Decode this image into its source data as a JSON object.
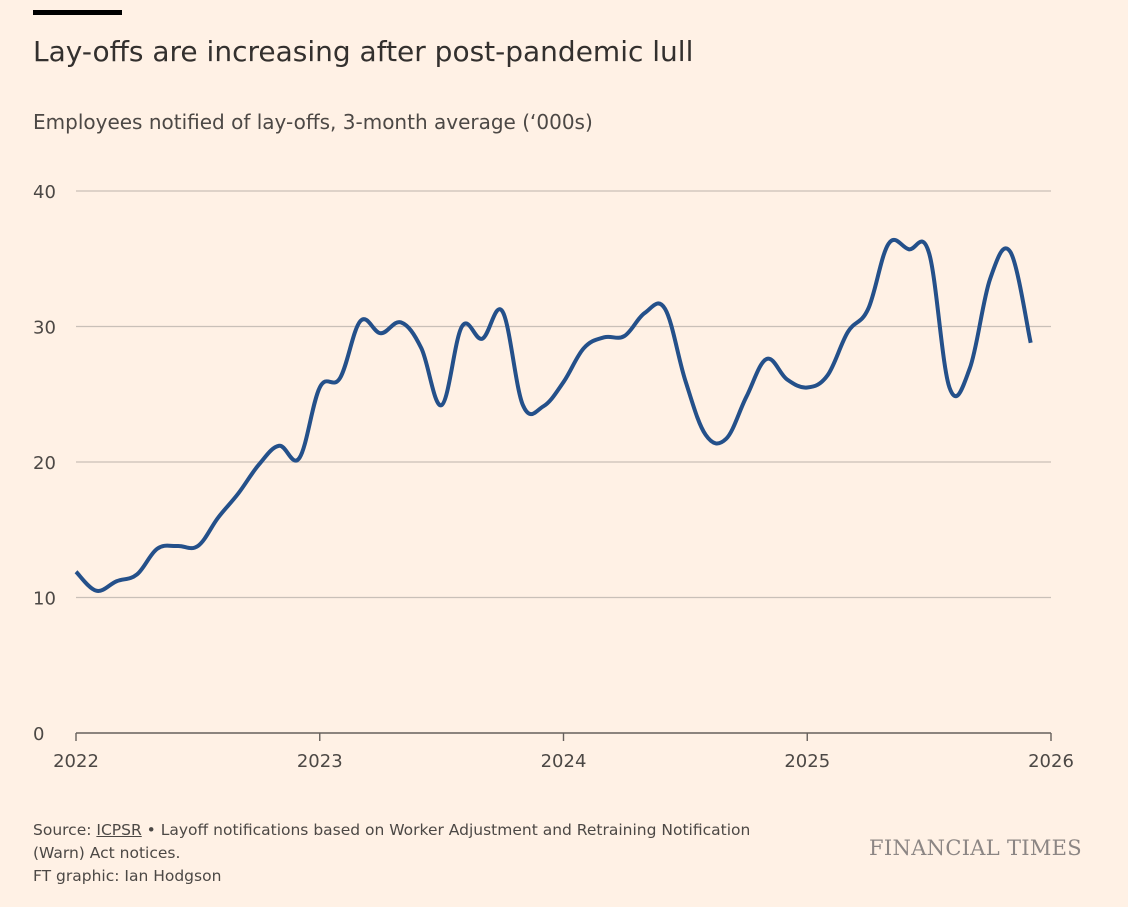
{
  "header": {
    "title": "Lay-offs are increasing after post-pandemic lull",
    "subtitle": "Employees notified of lay-offs, 3-month average (‘000s)"
  },
  "footer": {
    "source_prefix": "Source: ",
    "source_link": "ICPSR",
    "source_bullet": " • ",
    "source_note": "Layoff notifications based on Worker Adjustment and Retraining Notification (Warn) Act notices.",
    "credit": "FT graphic: Ian Hodgson",
    "brand": "FINANCIAL TIMES"
  },
  "colors": {
    "background": "#fff1e5",
    "line": "#24508a",
    "grid": "#c9c0b8",
    "axis": "#66605c"
  },
  "chart_data": {
    "type": "line",
    "title": "Lay-offs are increasing after post-pandemic lull",
    "subtitle": "Employees notified of lay-offs, 3-month average (‘000s)",
    "xlabel": "",
    "ylabel": "",
    "xlim": [
      "2022-01",
      "2026-01"
    ],
    "ylim": [
      0,
      40
    ],
    "x_ticks": [
      "2022",
      "2023",
      "2024",
      "2025",
      "2026"
    ],
    "y_ticks": [
      0,
      10,
      20,
      30,
      40
    ],
    "grid": "horizontal",
    "series": [
      {
        "x": [
          "2022-01",
          "2022-02",
          "2022-03",
          "2022-04",
          "2022-05",
          "2022-06",
          "2022-07",
          "2022-08",
          "2022-09",
          "2022-10",
          "2022-11",
          "2022-12",
          "2023-01",
          "2023-02",
          "2023-03",
          "2023-04",
          "2023-05",
          "2023-06",
          "2023-07",
          "2023-08",
          "2023-09",
          "2023-10",
          "2023-11",
          "2023-12",
          "2024-01",
          "2024-02",
          "2024-03",
          "2024-04",
          "2024-05",
          "2024-06",
          "2024-07",
          "2024-08",
          "2024-09",
          "2024-10",
          "2024-11",
          "2024-12",
          "2025-01",
          "2025-02",
          "2025-03",
          "2025-04",
          "2025-05",
          "2025-06",
          "2025-07",
          "2025-08",
          "2025-09",
          "2025-10",
          "2025-11",
          "2025-12"
        ],
        "values": [
          11.9,
          10.5,
          11.2,
          11.7,
          13.6,
          13.8,
          13.8,
          15.9,
          17.7,
          19.8,
          21.2,
          20.3,
          25.5,
          26.2,
          30.4,
          29.5,
          30.3,
          28.4,
          24.2,
          30.0,
          29.1,
          31.1,
          24.2,
          24.1,
          25.9,
          28.4,
          29.2,
          29.3,
          31.0,
          31.3,
          26.0,
          22.0,
          21.7,
          24.8,
          27.6,
          26.1,
          25.5,
          26.4,
          29.6,
          31.3,
          36.1,
          35.7,
          35.4,
          25.5,
          26.9,
          33.5,
          35.5,
          28.8
        ]
      }
    ]
  }
}
